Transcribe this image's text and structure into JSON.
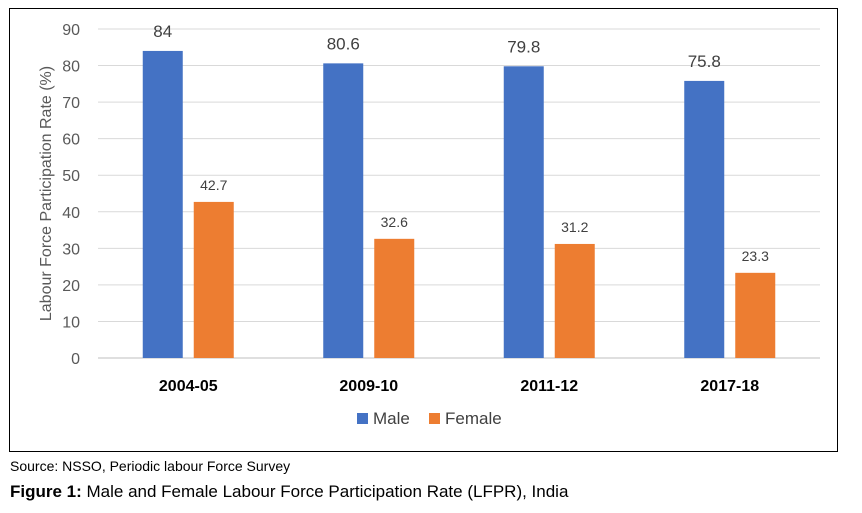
{
  "chart_data": {
    "type": "bar",
    "categories": [
      "2004-05",
      "2009-10",
      "2011-12",
      "2017-18"
    ],
    "series": [
      {
        "name": "Male",
        "values": [
          84,
          80.6,
          79.8,
          75.8
        ],
        "labels": [
          "84",
          "80.6",
          "79.8",
          "75.8"
        ],
        "color": "#4472C4"
      },
      {
        "name": "Female",
        "values": [
          42.7,
          32.6,
          31.2,
          23.3
        ],
        "labels": [
          "42.7",
          "32.6",
          "31.2",
          "23.3"
        ],
        "color": "#ED7D31"
      }
    ],
    "title": "",
    "xlabel": "",
    "ylabel": "Labour Force Participation Rate (%)",
    "ylim": [
      0,
      90
    ],
    "yticks": [
      "0",
      "10",
      "20",
      "30",
      "40",
      "50",
      "60",
      "70",
      "80",
      "90"
    ],
    "grid": true,
    "legend": "bottom"
  },
  "footer": {
    "source": "Source: NSSO, Periodic labour Force Survey",
    "caption_prefix": "Figure 1:",
    "caption_text": " Male and Female Labour Force Participation Rate (LFPR), India"
  },
  "colors": {
    "gridline": "#D9D9D9",
    "axis": "#BFBFBF"
  }
}
